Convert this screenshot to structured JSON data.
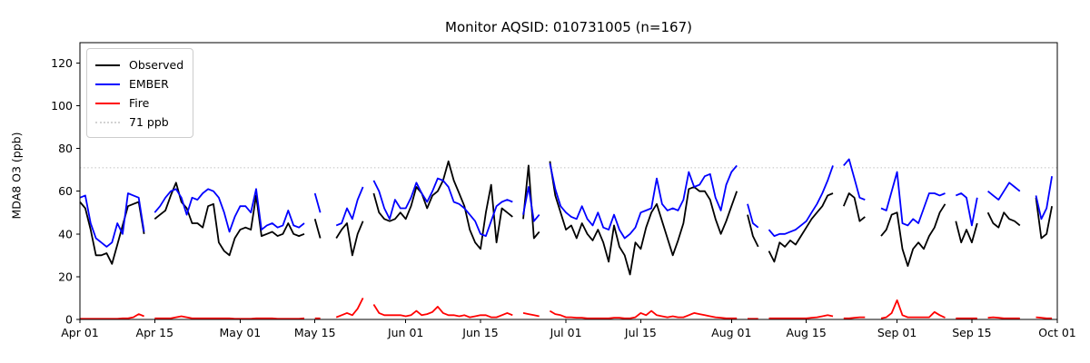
{
  "header": {
    "title": "Monitor AQSID: 010731005 (n=167)"
  },
  "chart_data": {
    "type": "line",
    "title": "Monitor AQSID: 010731005 (n=167)",
    "xlabel": "",
    "ylabel": "MDA8 O3 (ppb)",
    "x_start": "Apr 01",
    "x_end": "Oct 01",
    "n_days": 183,
    "ylim": [
      0,
      129.5
    ],
    "y_ticks": [
      0,
      20,
      40,
      60,
      80,
      100,
      120
    ],
    "x_tick_labels": [
      "Apr 01",
      "Apr 15",
      "May 01",
      "May 15",
      "Jun 01",
      "Jun 15",
      "Jul 01",
      "Jul 15",
      "Aug 01",
      "Aug 15",
      "Sep 01",
      "Sep 15",
      "Oct 01"
    ],
    "x_tick_days": [
      0,
      14,
      30,
      44,
      61,
      75,
      91,
      105,
      122,
      136,
      153,
      167,
      183
    ],
    "grid": false,
    "legend_position": "upper left",
    "legend": [
      {
        "label": "Observed",
        "color": "#000000",
        "style": "solid"
      },
      {
        "label": "EMBER",
        "color": "#0000ff",
        "style": "solid"
      },
      {
        "label": "Fire",
        "color": "#ff0000",
        "style": "solid"
      },
      {
        "label": "71 ppb",
        "color": "#d3d3d3",
        "style": "dotted"
      }
    ],
    "threshold": {
      "value": 71,
      "label": "71 ppb",
      "color": "#d3d3d3",
      "style": "dotted"
    },
    "series": [
      {
        "name": "Observed",
        "color": "#000000",
        "values": [
          55,
          52,
          42,
          30,
          30,
          31,
          26,
          35,
          44,
          53,
          54,
          55,
          40,
          null,
          47,
          49,
          51,
          58,
          64,
          55,
          52,
          45,
          45,
          43,
          53,
          54,
          36,
          32,
          30,
          38,
          42,
          43,
          42,
          58,
          39,
          40,
          41,
          39,
          40,
          45,
          40,
          39,
          40,
          null,
          47,
          38,
          null,
          null,
          38,
          42,
          45,
          30,
          40,
          46,
          null,
          59,
          50,
          47,
          46,
          47,
          50,
          47,
          53,
          62,
          59,
          52,
          58,
          60,
          65,
          74,
          65,
          59,
          53,
          42,
          36,
          33,
          50,
          63,
          36,
          52,
          50,
          48,
          null,
          47,
          72,
          38,
          41,
          null,
          74,
          58,
          50,
          42,
          44,
          38,
          45,
          40,
          37,
          42,
          36,
          27,
          44,
          34,
          30,
          21,
          36,
          33,
          43,
          50,
          54,
          46,
          38,
          30,
          37,
          45,
          61,
          62,
          60,
          60,
          56,
          47,
          40,
          46,
          53,
          60,
          null,
          49,
          39,
          34,
          null,
          32,
          27,
          36,
          34,
          37,
          35,
          39,
          43,
          47,
          50,
          53,
          58,
          59,
          null,
          53,
          59,
          57,
          46,
          48,
          null,
          null,
          39,
          42,
          49,
          50,
          33,
          25,
          33,
          36,
          33,
          39,
          43,
          50,
          54,
          null,
          46,
          36,
          42,
          36,
          45,
          null,
          50,
          45,
          43,
          50,
          47,
          46,
          44,
          null,
          null,
          57,
          38,
          40,
          53
        ]
      },
      {
        "name": "EMBER",
        "color": "#0000ff",
        "values": [
          57,
          58,
          45,
          38,
          36,
          34,
          36,
          45,
          40,
          59,
          58,
          57,
          41,
          null,
          50,
          53,
          57,
          60,
          61,
          57,
          49,
          57,
          56,
          59,
          61,
          60,
          57,
          50,
          41,
          48,
          53,
          53,
          50,
          61,
          42,
          44,
          45,
          43,
          44,
          51,
          44,
          43,
          45,
          null,
          59,
          50,
          null,
          null,
          44,
          45,
          52,
          47,
          56,
          62,
          null,
          65,
          60,
          52,
          47,
          56,
          52,
          52,
          57,
          64,
          59,
          55,
          60,
          66,
          65,
          62,
          55,
          54,
          52,
          49,
          46,
          40,
          39,
          46,
          53,
          55,
          56,
          55,
          null,
          49,
          62,
          46,
          49,
          null,
          73,
          61,
          53,
          50,
          48,
          47,
          53,
          47,
          44,
          50,
          43,
          42,
          49,
          42,
          38,
          40,
          43,
          50,
          51,
          52,
          66,
          54,
          51,
          52,
          51,
          56,
          69,
          62,
          63,
          67,
          68,
          57,
          51,
          63,
          69,
          72,
          null,
          54,
          45,
          43,
          null,
          42,
          39,
          40,
          40,
          41,
          42,
          44,
          46,
          50,
          54,
          59,
          65,
          72,
          null,
          72,
          75,
          66,
          57,
          56,
          null,
          null,
          52,
          51,
          60,
          69,
          45,
          44,
          47,
          45,
          52,
          59,
          59,
          58,
          59,
          null,
          58,
          59,
          57,
          44,
          57,
          null,
          60,
          58,
          56,
          60,
          64,
          62,
          60,
          null,
          null,
          58,
          47,
          52,
          67
        ]
      },
      {
        "name": "Fire",
        "color": "#ff0000",
        "values": [
          0.3,
          0.3,
          0.3,
          0.3,
          0.3,
          0.3,
          0.3,
          0.3,
          0.5,
          0.5,
          1,
          2.5,
          1.5,
          null,
          0.5,
          0.5,
          0.5,
          0.5,
          1,
          1.5,
          1,
          0.5,
          0.5,
          0.5,
          0.5,
          0.5,
          0.5,
          0.5,
          0.5,
          0.3,
          0.3,
          0.3,
          0.3,
          0.5,
          0.5,
          0.5,
          0.5,
          0.3,
          0.3,
          0.3,
          0.3,
          0.3,
          0.5,
          null,
          0.5,
          0.5,
          null,
          null,
          1,
          2,
          3,
          2,
          5,
          10,
          null,
          7,
          3,
          2,
          2,
          2,
          2,
          1.5,
          2,
          4,
          2,
          2.5,
          3.5,
          6,
          3,
          2,
          2,
          1.5,
          2,
          1,
          1.5,
          2,
          2,
          1,
          1,
          2,
          3,
          2,
          null,
          3,
          2.5,
          2,
          1.5,
          null,
          4,
          2.5,
          2,
          1,
          1,
          0.8,
          0.8,
          0.5,
          0.5,
          0.5,
          0.5,
          0.5,
          0.8,
          0.8,
          0.5,
          0.5,
          1,
          3,
          2,
          4,
          2,
          1.5,
          1,
          1.5,
          1,
          1,
          2,
          3,
          2.5,
          2,
          1.5,
          1,
          0.8,
          0.5,
          0.5,
          0.5,
          null,
          0.3,
          0.3,
          0.3,
          null,
          0.5,
          0.5,
          0.5,
          0.5,
          0.5,
          0.5,
          0.5,
          0.5,
          0.8,
          1,
          1.5,
          2,
          1.5,
          null,
          0.5,
          0.5,
          0.8,
          1,
          1,
          null,
          null,
          0.5,
          1,
          3,
          9,
          2,
          1,
          1,
          1,
          1,
          1,
          3.5,
          2,
          0.8,
          null,
          0.5,
          0.5,
          0.5,
          0.5,
          0.5,
          null,
          0.8,
          1,
          0.8,
          0.5,
          0.5,
          0.5,
          0.5,
          null,
          null,
          1,
          0.8,
          0.5,
          0.5
        ]
      }
    ]
  }
}
